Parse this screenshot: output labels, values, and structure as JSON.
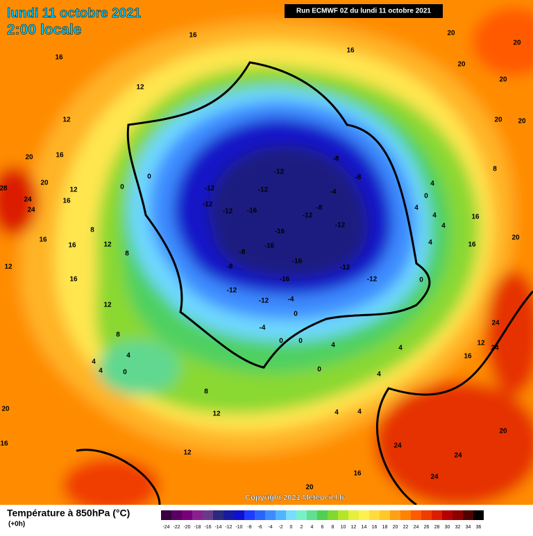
{
  "header": {
    "date": "lundi 11 octobre 2021",
    "time": "2:00 locale",
    "run": "Run ECMWF 0Z du lundi 11 octobre 2021"
  },
  "footer": {
    "copyright": "Copyright 2021 Meteociel.fr",
    "title": "Température à 850hPa (°C)",
    "subtitle": "(+0h)"
  },
  "colorbar": {
    "ticks": [
      -24,
      -22,
      -20,
      -18,
      -16,
      -14,
      -12,
      -10,
      -8,
      -6,
      -4,
      -2,
      0,
      2,
      4,
      6,
      8,
      10,
      12,
      14,
      16,
      18,
      20,
      22,
      24,
      26,
      28,
      30,
      32,
      34,
      36
    ],
    "colors": [
      "#3a0040",
      "#5a0060",
      "#780078",
      "#8a2090",
      "#6a3a8a",
      "#2a2a80",
      "#1a1aa0",
      "#1010d0",
      "#1e3cff",
      "#2a64ff",
      "#3c8cff",
      "#50b4ff",
      "#78dcff",
      "#7af0c8",
      "#60e090",
      "#50d050",
      "#80d830",
      "#b4e628",
      "#e6f03c",
      "#fff050",
      "#ffdc3c",
      "#ffc828",
      "#ffa014",
      "#ff8200",
      "#ff5a00",
      "#f03c00",
      "#dc1e00",
      "#b40000",
      "#8c0000",
      "#500000",
      "#000000"
    ]
  },
  "map_labels": [
    "16",
    "12",
    "12",
    "16",
    "20",
    "28",
    "20",
    "24",
    "12",
    "16",
    "24",
    "8",
    "16",
    "16",
    "12",
    "8",
    "16",
    "12",
    "12",
    "8",
    "4",
    "4",
    "4",
    "0",
    "8",
    "12",
    "20",
    "16",
    "12",
    "20",
    "16",
    "24",
    "24",
    "24",
    "20",
    "24",
    "24",
    "12",
    "16",
    "20",
    "20",
    "20",
    "20",
    "20",
    "20",
    "16",
    "8",
    "16",
    "16",
    "20",
    "4",
    "0",
    "4",
    "4",
    "4",
    "4",
    "0",
    "0",
    "0",
    "-12",
    "-8",
    "-8",
    "-4",
    "-12",
    "-12",
    "-12",
    "-12",
    "-16",
    "-8",
    "-12",
    "-12",
    "-16",
    "-16",
    "-8",
    "-16",
    "-8",
    "-12",
    "-12",
    "-16",
    "-12",
    "-12",
    "-4",
    "0",
    "-4",
    "0",
    "0",
    "4",
    "4",
    "4",
    "4",
    "0",
    "4",
    "16"
  ]
}
